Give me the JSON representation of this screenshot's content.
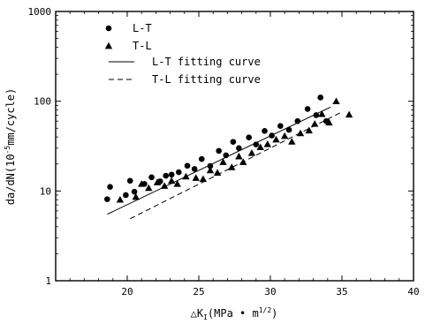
{
  "chart_data": {
    "type": "scatter",
    "title": "",
    "xlabel": "△K",
    "xlabel_sub": "I",
    "xlabel_unit": "(MPa • m",
    "xlabel_exp": "1/2",
    "xlabel_close": ")",
    "ylabel": "da/dN(10",
    "ylabel_exp": "-5",
    "ylabel_unit": "mm/cycle)",
    "xlim": [
      15,
      40
    ],
    "ylim": [
      1,
      1000
    ],
    "yscale": "log",
    "grid": false,
    "legend_position": "top-left",
    "x_ticks": [
      20,
      25,
      30,
      35,
      40
    ],
    "y_ticks": [
      1,
      10,
      100,
      1000
    ],
    "series": [
      {
        "name": "L-T",
        "marker": "circle",
        "points": [
          [
            18.6,
            8.1
          ],
          [
            18.8,
            11.1
          ],
          [
            19.9,
            9.0
          ],
          [
            20.2,
            13.0
          ],
          [
            20.5,
            9.8
          ],
          [
            21.2,
            12.0
          ],
          [
            21.7,
            14.2
          ],
          [
            22.3,
            12.8
          ],
          [
            22.7,
            14.8
          ],
          [
            23.1,
            15.2
          ],
          [
            23.6,
            16.2
          ],
          [
            24.2,
            19.1
          ],
          [
            24.7,
            17.6
          ],
          [
            25.2,
            22.7
          ],
          [
            25.8,
            19.0
          ],
          [
            26.4,
            28.0
          ],
          [
            26.9,
            25.0
          ],
          [
            27.4,
            35.3
          ],
          [
            27.8,
            30.0
          ],
          [
            28.5,
            39.5
          ],
          [
            29.0,
            33.0
          ],
          [
            29.6,
            46.7
          ],
          [
            30.1,
            41.5
          ],
          [
            30.7,
            53.0
          ],
          [
            31.3,
            48.0
          ],
          [
            31.9,
            60.0
          ],
          [
            32.6,
            82.0
          ],
          [
            33.2,
            70.0
          ],
          [
            33.5,
            110.0
          ],
          [
            33.9,
            60.0
          ]
        ]
      },
      {
        "name": "T-L",
        "marker": "triangle",
        "points": [
          [
            19.5,
            8.0
          ],
          [
            20.6,
            8.6
          ],
          [
            21.0,
            12.0
          ],
          [
            21.5,
            10.8
          ],
          [
            22.1,
            12.5
          ],
          [
            22.6,
            11.4
          ],
          [
            23.1,
            13.0
          ],
          [
            23.5,
            12.0
          ],
          [
            24.1,
            14.5
          ],
          [
            24.8,
            14.0
          ],
          [
            25.3,
            13.6
          ],
          [
            25.8,
            17.0
          ],
          [
            26.3,
            16.0
          ],
          [
            26.7,
            21.0
          ],
          [
            27.3,
            18.4
          ],
          [
            27.8,
            24.3
          ],
          [
            28.1,
            21.0
          ],
          [
            28.7,
            26.5
          ],
          [
            29.3,
            30.8
          ],
          [
            29.8,
            33.3
          ],
          [
            30.4,
            37.5
          ],
          [
            31.0,
            41.0
          ],
          [
            31.5,
            35.5
          ],
          [
            32.1,
            44.0
          ],
          [
            32.7,
            47.3
          ],
          [
            33.1,
            56.0
          ],
          [
            33.6,
            72.0
          ],
          [
            34.1,
            58.0
          ],
          [
            34.6,
            100.0
          ],
          [
            35.5,
            71.0
          ]
        ]
      }
    ],
    "fits": [
      {
        "name": "L-T fitting curve",
        "style": "solid",
        "from": [
          18.6,
          5.5
        ],
        "to": [
          34.2,
          86.0
        ]
      },
      {
        "name": "T-L fitting curve",
        "style": "dashed",
        "from": [
          20.2,
          4.9
        ],
        "to": [
          35.0,
          76.0
        ]
      }
    ]
  }
}
